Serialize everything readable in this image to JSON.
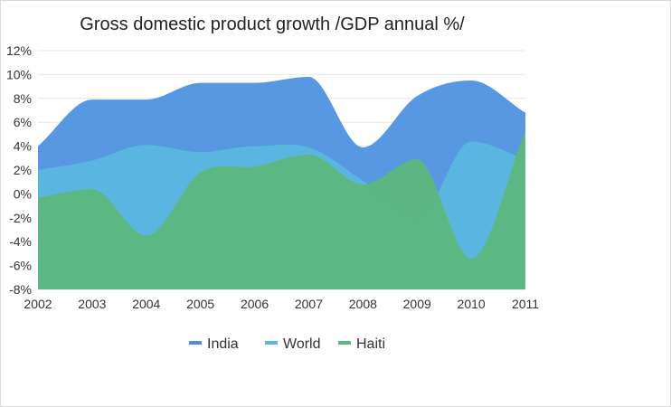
{
  "chart_data": {
    "type": "area",
    "title": "Gross domestic product growth /GDP annual %/",
    "xlabel": "",
    "ylabel": "",
    "x": [
      "2002",
      "2003",
      "2004",
      "2005",
      "2006",
      "2007",
      "2008",
      "2009",
      "2010",
      "2011"
    ],
    "ylim": [
      -8,
      12
    ],
    "yticks": [
      12,
      10,
      8,
      6,
      4,
      2,
      0,
      -2,
      -4,
      -6,
      -8
    ],
    "ytick_labels": [
      "12%",
      "10%",
      "8%",
      "6%",
      "4%",
      "2%",
      "0%",
      "-2%",
      "-4%",
      "-6%",
      "-8%"
    ],
    "grid": true,
    "legend_position": "bottom",
    "series": [
      {
        "name": "India",
        "color": "#4a8fe0",
        "values": [
          4.0,
          7.9,
          7.9,
          9.3,
          9.3,
          9.8,
          3.9,
          8.2,
          9.5,
          6.8
        ]
      },
      {
        "name": "World",
        "color": "#5ab8e0",
        "values": [
          2.0,
          2.8,
          4.1,
          3.5,
          4.0,
          3.9,
          1.1,
          -2.1,
          4.4,
          2.9
        ]
      },
      {
        "name": "Haiti",
        "color": "#5cb87a",
        "values": [
          -0.3,
          0.4,
          -3.5,
          1.8,
          2.3,
          3.3,
          0.8,
          2.9,
          -5.4,
          5.3
        ]
      }
    ]
  }
}
